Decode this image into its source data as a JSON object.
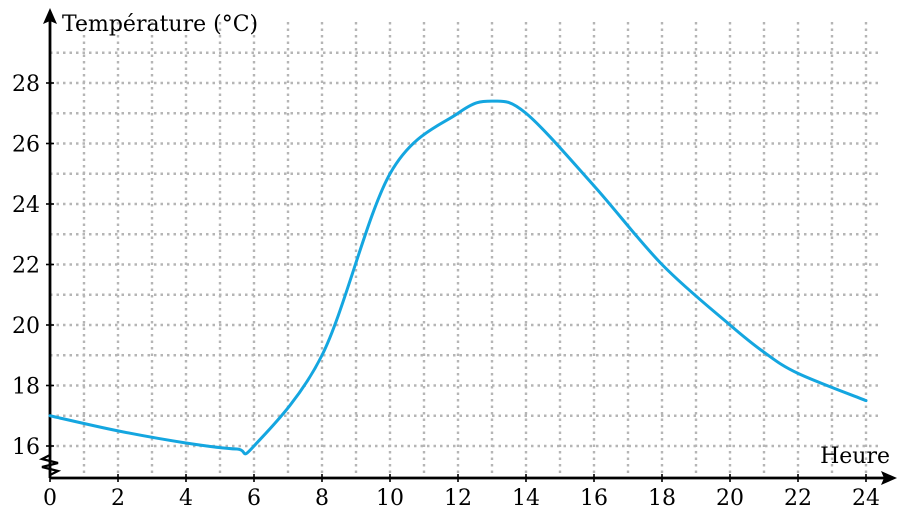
{
  "chart_data": {
    "type": "line",
    "xlabel": "Heure",
    "ylabel": "Température (°C)",
    "xlim": [
      0,
      24
    ],
    "ylim": [
      15,
      30
    ],
    "y_axis_break": true,
    "x_ticks": [
      0,
      2,
      4,
      6,
      8,
      10,
      12,
      14,
      16,
      18,
      20,
      22,
      24
    ],
    "y_ticks": [
      16,
      18,
      20,
      22,
      24,
      26,
      28
    ],
    "grid": true,
    "grid_step": {
      "x": 1,
      "y": 1
    },
    "series": [
      {
        "color": "#14a6e0",
        "x": [
          0,
          2,
          4,
          5.5,
          6,
          8,
          10,
          12,
          13,
          14,
          16,
          18,
          20,
          21,
          22,
          24
        ],
        "y": [
          17,
          16.5,
          16.1,
          15.9,
          16,
          19,
          25,
          27,
          27.4,
          27,
          24.6,
          22,
          20,
          19.1,
          18.4,
          17.5
        ]
      }
    ]
  }
}
